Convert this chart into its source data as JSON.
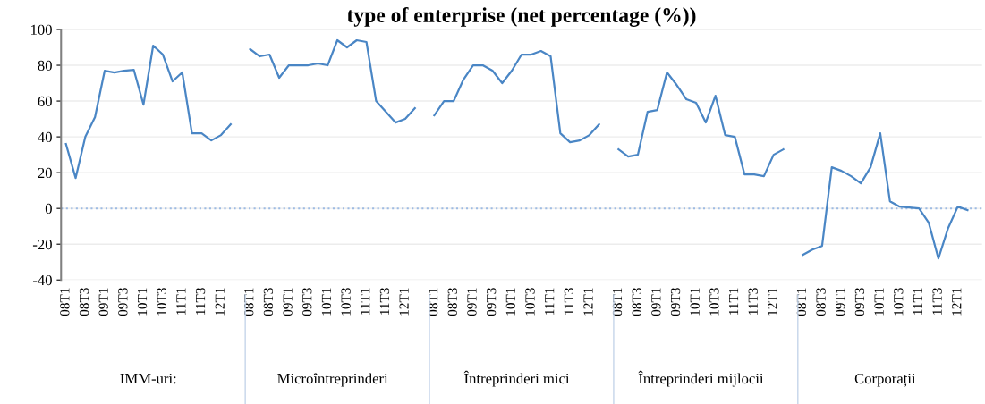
{
  "chart_data": {
    "type": "line",
    "title": "type of enterprise (net percentage (%))",
    "categories": [
      "08T1",
      null,
      "08T3",
      null,
      "09T1",
      null,
      "09T3",
      null,
      "10T1",
      null,
      "10T3",
      null,
      "11T1",
      null,
      "11T3",
      null,
      "12T1",
      null,
      null,
      "08T1",
      null,
      "08T3",
      null,
      "09T1",
      null,
      "09T3",
      null,
      "10T1",
      null,
      "10T3",
      null,
      "11T1",
      null,
      "11T3",
      null,
      "12T1",
      null,
      null,
      "08T1",
      null,
      "08T3",
      null,
      "09T1",
      null,
      "09T3",
      null,
      "10T1",
      null,
      "10T3",
      null,
      "11T1",
      null,
      "11T3",
      null,
      "12T1",
      null,
      null,
      "08T1",
      null,
      "08T3",
      null,
      "09T1",
      null,
      "09T3",
      null,
      "10T1",
      null,
      "10T3",
      null,
      "11T1",
      null,
      "11T3",
      null,
      "12T1",
      null,
      null,
      "08T1",
      null,
      "08T3",
      null,
      "09T1",
      null,
      "09T3",
      null,
      "10T1",
      null,
      "10T3",
      null,
      "11T1",
      null,
      "11T3",
      null,
      "12T1",
      null,
      null
    ],
    "series": [
      {
        "color": "#4a86c5",
        "values": [
          36,
          17,
          40,
          51,
          77,
          76,
          77,
          77.5,
          58,
          91,
          86,
          71,
          76,
          42,
          42,
          38,
          41,
          47,
          null,
          89,
          85,
          86,
          73,
          80,
          80,
          80,
          81,
          80,
          94,
          90,
          94,
          93,
          60,
          54,
          48,
          50,
          56,
          null,
          52,
          60,
          60,
          72,
          80,
          80,
          77,
          70,
          77,
          86,
          86,
          88,
          85,
          42,
          37,
          38,
          41,
          47,
          null,
          33,
          29,
          30,
          54,
          55,
          76,
          69,
          61,
          59,
          48,
          63,
          41,
          40,
          19,
          19,
          18,
          30,
          33,
          null,
          -26,
          -23,
          -21,
          23,
          21,
          18,
          14,
          23,
          42,
          4,
          1,
          0.5,
          0,
          -8,
          -28,
          -11,
          1,
          -1,
          null
        ]
      }
    ],
    "ylim": [
      -40,
      100
    ],
    "yticks": [
      -40,
      -20,
      0,
      20,
      40,
      60,
      80,
      100
    ],
    "grid": "y",
    "ref_lines": [
      {
        "axis": "y",
        "value": 0,
        "color": "#9dbbe3",
        "line_style": "dotted"
      }
    ],
    "annotations": [
      "IMM-uri:",
      "Microîntreprinderi",
      "Întreprinderi mici",
      "Întreprinderi mijlocii",
      "Corporații"
    ]
  }
}
